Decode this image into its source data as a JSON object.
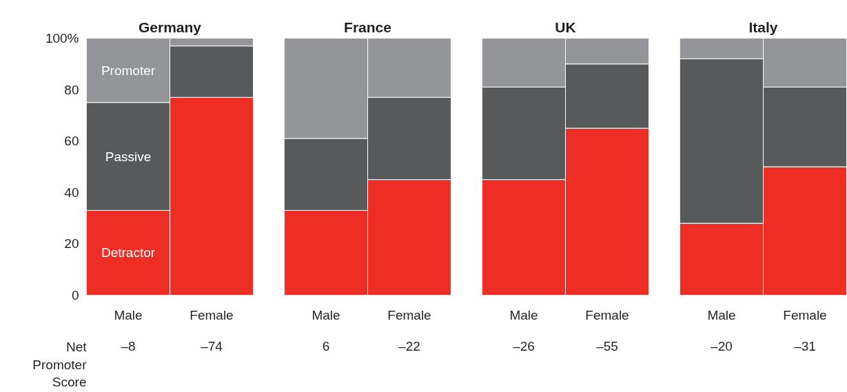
{
  "chart_data": [
    {
      "type": "bar",
      "title": "Germany",
      "categories": [
        "Male",
        "Female"
      ],
      "stacked": true,
      "ylim": [
        0,
        100
      ],
      "yticks": [
        0,
        20,
        40,
        60,
        80,
        {
          "value": 100,
          "label": "100%"
        }
      ],
      "series": [
        {
          "name": "Detractor",
          "color": "#ee2e24",
          "values": [
            33,
            77
          ]
        },
        {
          "name": "Passive",
          "color": "#58595b",
          "values": [
            42,
            20
          ]
        },
        {
          "name": "Promoter",
          "color": "#939598",
          "values": [
            25,
            3
          ]
        }
      ],
      "annotations": [
        "Net Promoter Score",
        "–8",
        "–74"
      ]
    },
    {
      "type": "bar",
      "title": "France",
      "categories": [
        "Male",
        "Female"
      ],
      "stacked": true,
      "ylim": [
        0,
        100
      ],
      "tick_labels": "x",
      "series": [
        {
          "color": "#ee2e24",
          "values": [
            33,
            45
          ]
        },
        {
          "color": "#58595b",
          "values": [
            28,
            32
          ]
        },
        {
          "color": "#939598",
          "values": [
            39,
            23
          ]
        }
      ],
      "annotations": [
        "6",
        "–22"
      ]
    },
    {
      "type": "bar",
      "title": "UK",
      "categories": [
        "Male",
        "Female"
      ],
      "stacked": true,
      "ylim": [
        0,
        100
      ],
      "tick_labels": "x",
      "series": [
        {
          "color": "#ee2e24",
          "values": [
            45,
            65
          ]
        },
        {
          "color": "#58595b",
          "values": [
            36,
            25
          ]
        },
        {
          "color": "#939598",
          "values": [
            19,
            10
          ]
        }
      ],
      "annotations": [
        "–26",
        "–55"
      ]
    },
    {
      "type": "bar",
      "title": "Italy",
      "categories": [
        "Male",
        "Female"
      ],
      "stacked": true,
      "ylim": [
        0,
        100
      ],
      "tick_labels": "x",
      "series": [
        {
          "color": "#ee2e24",
          "values": [
            28,
            50
          ]
        },
        {
          "color": "#58595b",
          "values": [
            64,
            31
          ]
        },
        {
          "color": "#939598",
          "values": [
            8,
            19
          ]
        }
      ],
      "annotations": [
        "–20",
        "–31"
      ]
    }
  ]
}
